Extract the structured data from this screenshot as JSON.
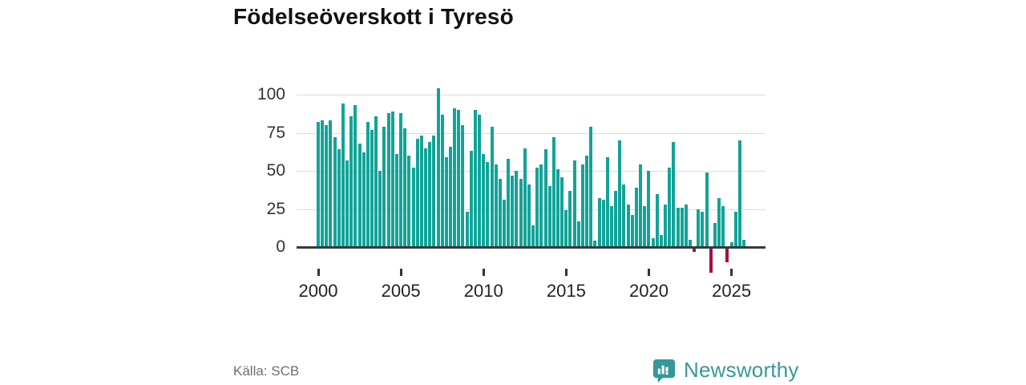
{
  "title": "Födelseöverskott i Tyresö",
  "source": "Källa: SCB",
  "brand": {
    "name": "Newsworthy",
    "icon": "bar-chart-speech-bubble-icon",
    "color": "#35989a"
  },
  "colors": {
    "positive_bar": "#12a398",
    "negative_bar": "#a50f44",
    "zero_axis": "#3a3a3a",
    "gridline": "#dcdcdc"
  },
  "chart_data": {
    "type": "bar",
    "title": "Födelseöverskott i Tyresö",
    "frequency": "quarterly",
    "start_period": "2000-Q1",
    "end_period": "2025-Q4",
    "x_tick_labels": [
      "2000",
      "2005",
      "2010",
      "2015",
      "2020",
      "2025"
    ],
    "y_tick_values": [
      100,
      75,
      50,
      25,
      0
    ],
    "ylim": [
      -20,
      112
    ],
    "grid": "horizontal",
    "legend": "none",
    "values": [
      82,
      83,
      80,
      83,
      72,
      64,
      94,
      57,
      86,
      93,
      68,
      62,
      82,
      77,
      86,
      50,
      79,
      88,
      89,
      61,
      88,
      78,
      60,
      52,
      71,
      73,
      65,
      69,
      73,
      104,
      87,
      59,
      66,
      91,
      90,
      80,
      23,
      63,
      90,
      87,
      61,
      56,
      79,
      54,
      45,
      31,
      58,
      47,
      50,
      45,
      65,
      41,
      14,
      52,
      54,
      64,
      40,
      72,
      51,
      46,
      24,
      37,
      57,
      17,
      54,
      60,
      79,
      4,
      32,
      31,
      59,
      27,
      37,
      70,
      41,
      28,
      21,
      39,
      54,
      27,
      50,
      6,
      35,
      8,
      28,
      52,
      69,
      26,
      26,
      28,
      5,
      -2,
      25,
      23,
      49,
      -16,
      16,
      32,
      27,
      -9,
      3,
      23,
      70,
      5
    ]
  }
}
